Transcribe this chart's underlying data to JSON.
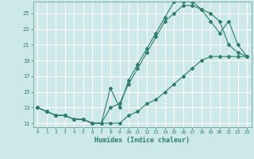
{
  "title": "",
  "xlabel": "Humidex (Indice chaleur)",
  "bg_color": "#cde8e8",
  "grid_color": "#ffffff",
  "line_color": "#2e7d6d",
  "xlim": [
    -0.5,
    23.5
  ],
  "ylim": [
    10.5,
    26.5
  ],
  "xticks": [
    0,
    1,
    2,
    3,
    4,
    5,
    6,
    7,
    8,
    9,
    10,
    11,
    12,
    13,
    14,
    15,
    16,
    17,
    18,
    19,
    20,
    21,
    22,
    23
  ],
  "yticks": [
    11,
    13,
    15,
    17,
    19,
    21,
    23,
    25
  ],
  "line1_x": [
    0,
    1,
    2,
    3,
    4,
    5,
    6,
    7,
    8,
    9,
    10,
    11,
    12,
    13,
    14,
    15,
    16,
    17,
    18,
    19,
    20,
    21,
    22,
    23
  ],
  "line1_y": [
    13,
    12.5,
    12,
    12,
    11.5,
    11.5,
    11,
    11,
    15.5,
    13,
    16.5,
    18.5,
    20.5,
    22.5,
    24.5,
    26.5,
    26.5,
    26.5,
    25.5,
    25,
    24,
    21,
    20,
    19.5
  ],
  "line2_x": [
    0,
    1,
    2,
    3,
    4,
    5,
    6,
    7,
    8,
    9,
    10,
    11,
    12,
    13,
    14,
    15,
    16,
    17,
    18,
    19,
    20,
    21,
    22,
    23
  ],
  "line2_y": [
    13,
    12.5,
    12,
    12,
    11.5,
    11.5,
    11,
    11,
    13,
    13.5,
    16,
    18,
    20,
    22,
    24,
    25,
    26,
    26,
    25.5,
    24,
    22.5,
    24,
    21,
    19.5
  ],
  "line3_x": [
    0,
    1,
    2,
    3,
    4,
    5,
    6,
    7,
    8,
    9,
    10,
    11,
    12,
    13,
    14,
    15,
    16,
    17,
    18,
    19,
    20,
    21,
    22,
    23
  ],
  "line3_y": [
    13,
    12.5,
    12,
    12,
    11.5,
    11.5,
    11,
    11,
    11,
    11,
    12,
    12.5,
    13.5,
    14,
    15,
    16,
    17,
    18,
    19,
    19.5,
    19.5,
    19.5,
    19.5,
    19.5
  ]
}
